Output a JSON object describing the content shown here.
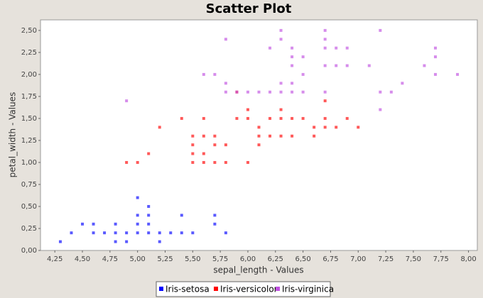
{
  "chart_data": {
    "type": "scatter",
    "title": "Scatter Plot",
    "x_label": "sepal_length - Values",
    "y_label": "petal_width - Values",
    "xlim": [
      4.12,
      8.08
    ],
    "ylim": [
      0,
      2.62
    ],
    "xticks": [
      {
        "value": 4.25,
        "label": "4,25"
      },
      {
        "value": 4.5,
        "label": "4,50"
      },
      {
        "value": 4.75,
        "label": "4,75"
      },
      {
        "value": 5,
        "label": "5,00"
      },
      {
        "value": 5.25,
        "label": "5,25"
      },
      {
        "value": 5.5,
        "label": "5,50"
      },
      {
        "value": 5.75,
        "label": "5,75"
      },
      {
        "value": 6,
        "label": "6,00"
      },
      {
        "value": 6.25,
        "label": "6,25"
      },
      {
        "value": 6.5,
        "label": "6,50"
      },
      {
        "value": 6.75,
        "label": "6,75"
      },
      {
        "value": 7,
        "label": "7,00"
      },
      {
        "value": 7.25,
        "label": "7,25"
      },
      {
        "value": 7.5,
        "label": "7,50"
      },
      {
        "value": 7.75,
        "label": "7,75"
      },
      {
        "value": 8,
        "label": "8,00"
      }
    ],
    "yticks": [
      {
        "value": 0,
        "label": "0,00"
      },
      {
        "value": 0.25,
        "label": "0,25"
      },
      {
        "value": 0.5,
        "label": "0,50"
      },
      {
        "value": 0.75,
        "label": "0,75"
      },
      {
        "value": 1,
        "label": "1,00"
      },
      {
        "value": 1.25,
        "label": "1,25"
      },
      {
        "value": 1.5,
        "label": "1,50"
      },
      {
        "value": 1.75,
        "label": "1,75"
      },
      {
        "value": 2,
        "label": "2,00"
      },
      {
        "value": 2.25,
        "label": "2,25"
      },
      {
        "value": 2.5,
        "label": "2,50"
      }
    ],
    "grid": false,
    "series": [
      {
        "name": "Iris-setosa",
        "color": "#0000ff",
        "x": [
          4.3,
          4.4,
          4.5,
          4.6,
          4.6,
          4.7,
          4.8,
          4.8,
          4.8,
          4.9,
          4.9,
          5.0,
          5.0,
          5.0,
          5.0,
          5.1,
          5.1,
          5.1,
          5.1,
          5.2,
          5.2,
          5.3,
          5.4,
          5.4,
          5.5,
          5.7,
          5.7,
          5.8
        ],
        "values": [
          0.1,
          0.2,
          0.3,
          0.2,
          0.3,
          0.2,
          0.1,
          0.2,
          0.3,
          0.1,
          0.2,
          0.2,
          0.3,
          0.4,
          0.6,
          0.2,
          0.3,
          0.4,
          0.5,
          0.1,
          0.2,
          0.2,
          0.2,
          0.4,
          0.2,
          0.3,
          0.4,
          0.2
        ]
      },
      {
        "name": "Iris-versicolor",
        "color": "#ff0000",
        "x": [
          4.9,
          5.0,
          5.1,
          5.2,
          5.4,
          5.5,
          5.5,
          5.5,
          5.5,
          5.6,
          5.6,
          5.6,
          5.6,
          5.7,
          5.7,
          5.7,
          5.8,
          5.8,
          5.9,
          5.9,
          6.0,
          6.0,
          6.0,
          6.1,
          6.1,
          6.1,
          6.2,
          6.2,
          6.3,
          6.3,
          6.3,
          6.4,
          6.4,
          6.5,
          6.6,
          6.6,
          6.7,
          6.7,
          6.7,
          6.8,
          6.9,
          7.0
        ],
        "values": [
          1.0,
          1.0,
          1.1,
          1.4,
          1.5,
          1.0,
          1.1,
          1.2,
          1.3,
          1.0,
          1.1,
          1.3,
          1.5,
          1.0,
          1.2,
          1.3,
          1.0,
          1.2,
          1.5,
          1.8,
          1.0,
          1.5,
          1.6,
          1.2,
          1.3,
          1.4,
          1.3,
          1.5,
          1.3,
          1.5,
          1.6,
          1.3,
          1.5,
          1.5,
          1.3,
          1.4,
          1.4,
          1.5,
          1.7,
          1.4,
          1.5,
          1.4
        ]
      },
      {
        "name": "Iris-virginica",
        "color": "#c050e0",
        "x": [
          4.9,
          5.6,
          5.7,
          5.8,
          5.8,
          5.8,
          5.9,
          6.0,
          6.1,
          6.2,
          6.2,
          6.3,
          6.3,
          6.3,
          6.3,
          6.4,
          6.4,
          6.4,
          6.4,
          6.4,
          6.5,
          6.5,
          6.5,
          6.7,
          6.7,
          6.7,
          6.7,
          6.7,
          6.8,
          6.8,
          6.9,
          6.9,
          7.1,
          7.2,
          7.2,
          7.2,
          7.3,
          7.4,
          7.6,
          7.7,
          7.7,
          7.7,
          7.9
        ],
        "values": [
          1.7,
          2.0,
          2.0,
          1.8,
          1.9,
          2.4,
          1.8,
          1.8,
          1.8,
          1.8,
          2.3,
          1.8,
          1.9,
          2.4,
          2.5,
          1.8,
          1.9,
          2.1,
          2.2,
          2.3,
          1.8,
          2.0,
          2.2,
          1.8,
          2.1,
          2.3,
          2.4,
          2.5,
          2.1,
          2.3,
          2.1,
          2.3,
          2.1,
          1.6,
          1.8,
          2.5,
          1.8,
          1.9,
          2.1,
          2.0,
          2.2,
          2.3,
          2.0
        ]
      }
    ]
  }
}
